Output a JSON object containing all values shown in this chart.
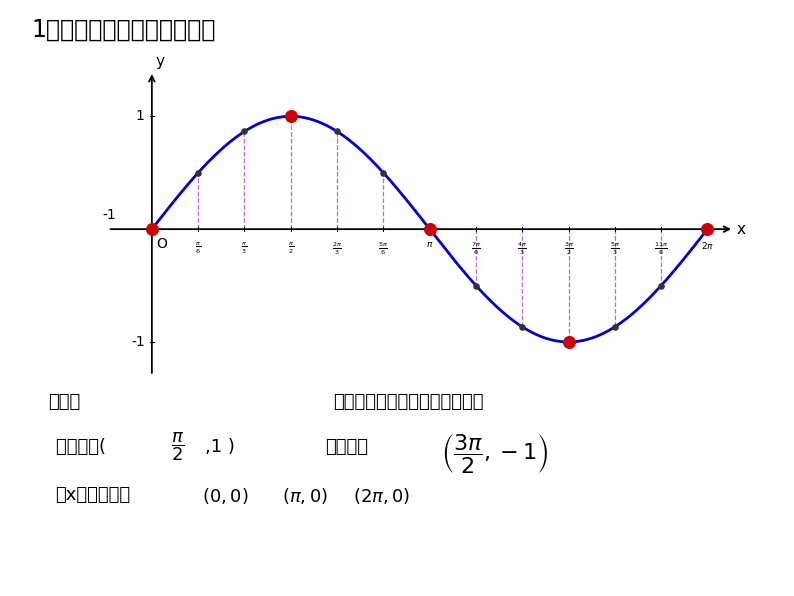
{
  "title": "1、正、余弦函数图像特征：",
  "bg_color": "#ffffff",
  "curve_color": "#0000cc",
  "dot_color": "#cc0000",
  "dashed_color": "#cc66cc",
  "axis_color": "#000000",
  "text_color": "#000000",
  "x_ticks": [
    0.5235987755982988,
    1.0471975511965976,
    1.5707963267948966,
    2.0943951023931953,
    2.617993877991494,
    3.141592653589793,
    3.6651914291880923,
    4.1887902047863905,
    4.71238898038469,
    5.235987755982988,
    5.759586531581287,
    6.283185307179586
  ],
  "red_dots_x": [
    0,
    1.5707963267948966,
    3.141592653589793,
    4.71238898038469,
    6.283185307179586
  ],
  "red_dots_y": [
    0,
    1,
    0,
    -1,
    0
  ],
  "small_dots_x": [
    0.5235987755982988,
    1.0471975511965976,
    2.0943951023931953,
    2.617993877991494,
    3.6651914291880923,
    4.1887902047863905,
    5.235987755982988,
    5.759586531581287
  ],
  "dashed_x": [
    0.5235987755982988,
    1.0471975511965976,
    1.5707963267948966,
    2.0943951023931953,
    2.617993877991494,
    3.6651914291880923,
    4.1887902047863905,
    4.71238898038469,
    5.235987755982988,
    5.759586531581287
  ],
  "text_zaihansu": "在函数",
  "text_dejuxiang": "的图象上，起关键作用的点有：",
  "text_zuigaodian": "最高点：",
  "text_zuidian": "最低点：",
  "text_jiaodian": "与x轴的交点："
}
